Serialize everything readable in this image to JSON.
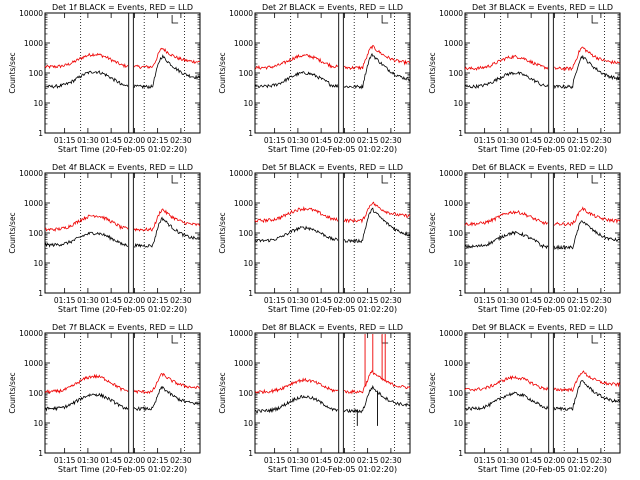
{
  "chart_data": [
    {
      "type": "line",
      "title": "Det 1f BLACK = Events, RED = LLD",
      "xlabel": "Start Time (20-Feb-05 01:02:20)",
      "ylabel": "Counts/sec",
      "xticks": [
        "01:15",
        "01:30",
        "01:45",
        "02:00",
        "02:15",
        "02:30"
      ],
      "yticks": [
        "1",
        "10",
        "100",
        "1000",
        "10000"
      ],
      "ylim": [
        1,
        10000
      ],
      "yscale": "log",
      "x_unit": "minutes after start time",
      "xlim": [
        0,
        100
      ],
      "series": [
        {
          "color": "#000000",
          "baseline": 35,
          "hump": 110,
          "valley": 35,
          "peak": 350,
          "end": 60
        },
        {
          "color": "#ee0000",
          "baseline": 160,
          "hump": 420,
          "valley": 170,
          "peak": 650,
          "end": 220
        }
      ]
    },
    {
      "type": "line",
      "title": "Det 2f BLACK = Events, RED = LLD",
      "xlabel": "Start Time (20-Feb-05 01:02:20)",
      "ylabel": "Counts/sec",
      "xticks": [
        "01:15",
        "01:30",
        "01:45",
        "02:00",
        "02:15",
        "02:30"
      ],
      "yticks": [
        "1",
        "10",
        "100",
        "1000",
        "10000"
      ],
      "ylim": [
        1,
        10000
      ],
      "yscale": "log",
      "x_unit": "minutes after start time",
      "xlim": [
        0,
        100
      ],
      "series": [
        {
          "color": "#000000",
          "baseline": 35,
          "hump": 100,
          "valley": 35,
          "peak": 400,
          "end": 50
        },
        {
          "color": "#ee0000",
          "baseline": 150,
          "hump": 380,
          "valley": 170,
          "peak": 750,
          "end": 200
        }
      ]
    },
    {
      "type": "line",
      "title": "Det 3f BLACK = Events, RED = LLD",
      "xlabel": "Start Time (20-Feb-05 01:02:20)",
      "ylabel": "Counts/sec",
      "xticks": [
        "01:15",
        "01:30",
        "01:45",
        "02:00",
        "02:15",
        "02:30"
      ],
      "yticks": [
        "1",
        "10",
        "100",
        "1000",
        "10000"
      ],
      "ylim": [
        1,
        10000
      ],
      "yscale": "log",
      "x_unit": "minutes after start time",
      "xlim": [
        0,
        100
      ],
      "series": [
        {
          "color": "#000000",
          "baseline": 35,
          "hump": 100,
          "valley": 35,
          "peak": 350,
          "end": 55
        },
        {
          "color": "#ee0000",
          "baseline": 140,
          "hump": 350,
          "valley": 160,
          "peak": 700,
          "end": 200
        }
      ]
    },
    {
      "type": "line",
      "title": "Det 4f BLACK = Events, RED = LLD",
      "xlabel": "Start Time (20-Feb-05 01:02:20)",
      "ylabel": "Counts/sec",
      "xticks": [
        "01:15",
        "01:30",
        "01:45",
        "02:00",
        "02:15",
        "02:30"
      ],
      "yticks": [
        "1",
        "10",
        "100",
        "1000",
        "10000"
      ],
      "ylim": [
        1,
        10000
      ],
      "yscale": "log",
      "x_unit": "minutes after start time",
      "xlim": [
        0,
        100
      ],
      "series": [
        {
          "color": "#000000",
          "baseline": 40,
          "hump": 100,
          "valley": 35,
          "peak": 300,
          "end": 55
        },
        {
          "color": "#ee0000",
          "baseline": 130,
          "hump": 380,
          "valley": 140,
          "peak": 600,
          "end": 170
        }
      ]
    },
    {
      "type": "line",
      "title": "Det 5f BLACK = Events, RED = LLD",
      "xlabel": "Start Time (20-Feb-05 01:02:20)",
      "ylabel": "Counts/sec",
      "xticks": [
        "01:15",
        "01:30",
        "01:45",
        "02:00",
        "02:15",
        "02:30"
      ],
      "yticks": [
        "1",
        "10",
        "100",
        "1000",
        "10000"
      ],
      "ylim": [
        1,
        10000
      ],
      "yscale": "log",
      "x_unit": "minutes after start time",
      "xlim": [
        0,
        100
      ],
      "series": [
        {
          "color": "#000000",
          "baseline": 55,
          "hump": 150,
          "valley": 60,
          "peak": 600,
          "end": 70
        },
        {
          "color": "#ee0000",
          "baseline": 260,
          "hump": 650,
          "valley": 280,
          "peak": 1000,
          "end": 350
        }
      ]
    },
    {
      "type": "line",
      "title": "Det 6f BLACK = Events, RED = LLD",
      "xlabel": "Start Time (20-Feb-05 01:02:20)",
      "ylabel": "Counts/sec",
      "xticks": [
        "01:15",
        "01:30",
        "01:45",
        "02:00",
        "02:15",
        "02:30"
      ],
      "yticks": [
        "1",
        "10",
        "100",
        "1000",
        "10000"
      ],
      "ylim": [
        1,
        10000
      ],
      "yscale": "log",
      "x_unit": "minutes after start time",
      "xlim": [
        0,
        100
      ],
      "series": [
        {
          "color": "#000000",
          "baseline": 35,
          "hump": 100,
          "valley": 30,
          "peak": 250,
          "end": 50
        },
        {
          "color": "#ee0000",
          "baseline": 200,
          "hump": 500,
          "valley": 210,
          "peak": 650,
          "end": 240
        }
      ]
    },
    {
      "type": "line",
      "title": "Det 7f BLACK = Events, RED = LLD",
      "xlabel": "Start Time (20-Feb-05 01:02:20)",
      "ylabel": "Counts/sec",
      "xticks": [
        "01:15",
        "01:30",
        "01:45",
        "02:00",
        "02:15",
        "02:30"
      ],
      "yticks": [
        "1",
        "10",
        "100",
        "1000",
        "10000"
      ],
      "ylim": [
        1,
        10000
      ],
      "yscale": "log",
      "x_unit": "minutes after start time",
      "xlim": [
        0,
        100
      ],
      "series": [
        {
          "color": "#000000",
          "baseline": 30,
          "hump": 90,
          "valley": 30,
          "peak": 150,
          "end": 40
        },
        {
          "color": "#ee0000",
          "baseline": 110,
          "hump": 360,
          "valley": 120,
          "peak": 420,
          "end": 140
        }
      ]
    },
    {
      "type": "line",
      "title": "Det 8f BLACK = Events, RED = LLD",
      "xlabel": "Start Time (20-Feb-05 01:02:20)",
      "ylabel": "Counts/sec",
      "xticks": [
        "01:15",
        "01:30",
        "01:45",
        "02:00",
        "02:15",
        "02:30"
      ],
      "yticks": [
        "1",
        "10",
        "100",
        "1000",
        "10000"
      ],
      "ylim": [
        1,
        10000
      ],
      "yscale": "log",
      "x_unit": "minutes after start time",
      "xlim": [
        0,
        100
      ],
      "spikes": [
        {
          "x": 71,
          "dir": "up"
        },
        {
          "x": 76,
          "dir": "up"
        },
        {
          "x": 82,
          "dir": "up"
        },
        {
          "x": 84,
          "dir": "up"
        },
        {
          "x": 66,
          "dir": "down"
        },
        {
          "x": 79,
          "dir": "down"
        }
      ],
      "series": [
        {
          "color": "#000000",
          "baseline": 25,
          "hump": 75,
          "valley": 25,
          "peak": 150,
          "end": 35
        },
        {
          "color": "#ee0000",
          "baseline": 110,
          "hump": 270,
          "valley": 120,
          "peak": 500,
          "end": 140
        }
      ]
    },
    {
      "type": "line",
      "title": "Det 9f BLACK = Events, RED = LLD",
      "xlabel": "Start Time (20-Feb-05 01:02:20)",
      "ylabel": "Counts/sec",
      "xticks": [
        "01:15",
        "01:30",
        "01:45",
        "02:00",
        "02:15",
        "02:30"
      ],
      "yticks": [
        "1",
        "10",
        "100",
        "1000",
        "10000"
      ],
      "ylim": [
        1,
        10000
      ],
      "yscale": "log",
      "x_unit": "minutes after start time",
      "xlim": [
        0,
        100
      ],
      "series": [
        {
          "color": "#000000",
          "baseline": 30,
          "hump": 95,
          "valley": 30,
          "peak": 240,
          "end": 45
        },
        {
          "color": "#ee0000",
          "baseline": 130,
          "hump": 330,
          "valley": 140,
          "peak": 500,
          "end": 180
        }
      ]
    }
  ]
}
